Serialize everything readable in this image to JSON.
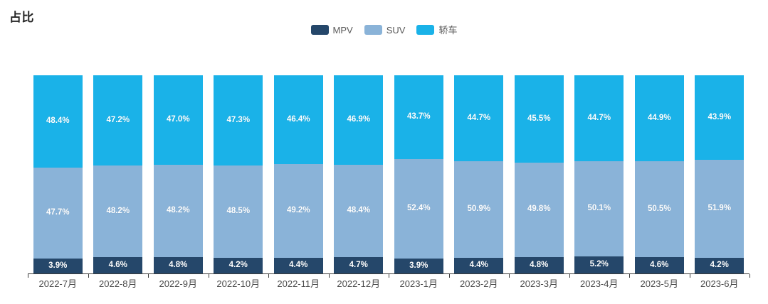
{
  "title": "占比",
  "legend": {
    "position": "top-center",
    "items": [
      {
        "label": "MPV",
        "color": "#25476a"
      },
      {
        "label": "SUV",
        "color": "#8ab3d8"
      },
      {
        "label": "轿车",
        "color": "#1ab2e8"
      }
    ]
  },
  "chart_data": {
    "type": "bar",
    "stacked": true,
    "percent_stacked": true,
    "title": "占比",
    "xlabel": "",
    "ylabel": "",
    "ylim": [
      0,
      100
    ],
    "grid": false,
    "legend_position": "top",
    "value_label_format": "{value}%",
    "value_label_color": "#ffffff",
    "categories": [
      "2022-7月",
      "2022-8月",
      "2022-9月",
      "2022-10月",
      "2022-11月",
      "2022-12月",
      "2023-1月",
      "2023-2月",
      "2023-3月",
      "2023-4月",
      "2023-5月",
      "2023-6月"
    ],
    "series": [
      {
        "name": "MPV",
        "color": "#25476a",
        "values": [
          3.9,
          4.6,
          4.8,
          4.2,
          4.4,
          4.7,
          3.9,
          4.4,
          4.8,
          5.2,
          4.6,
          4.2
        ]
      },
      {
        "name": "SUV",
        "color": "#8ab3d8",
        "values": [
          47.7,
          48.2,
          48.2,
          48.5,
          49.2,
          48.4,
          52.4,
          50.9,
          49.8,
          50.1,
          50.5,
          51.9
        ]
      },
      {
        "name": "轿车",
        "color": "#1ab2e8",
        "values": [
          48.4,
          47.2,
          47.0,
          47.3,
          46.4,
          46.9,
          43.7,
          44.7,
          45.5,
          44.7,
          44.9,
          43.9
        ]
      }
    ]
  },
  "colors": {
    "axis_line": "#3c3c3c",
    "axis_label": "#4a4a4a",
    "title_text": "#252525",
    "legend_text": "#595959",
    "background": "#ffffff"
  }
}
